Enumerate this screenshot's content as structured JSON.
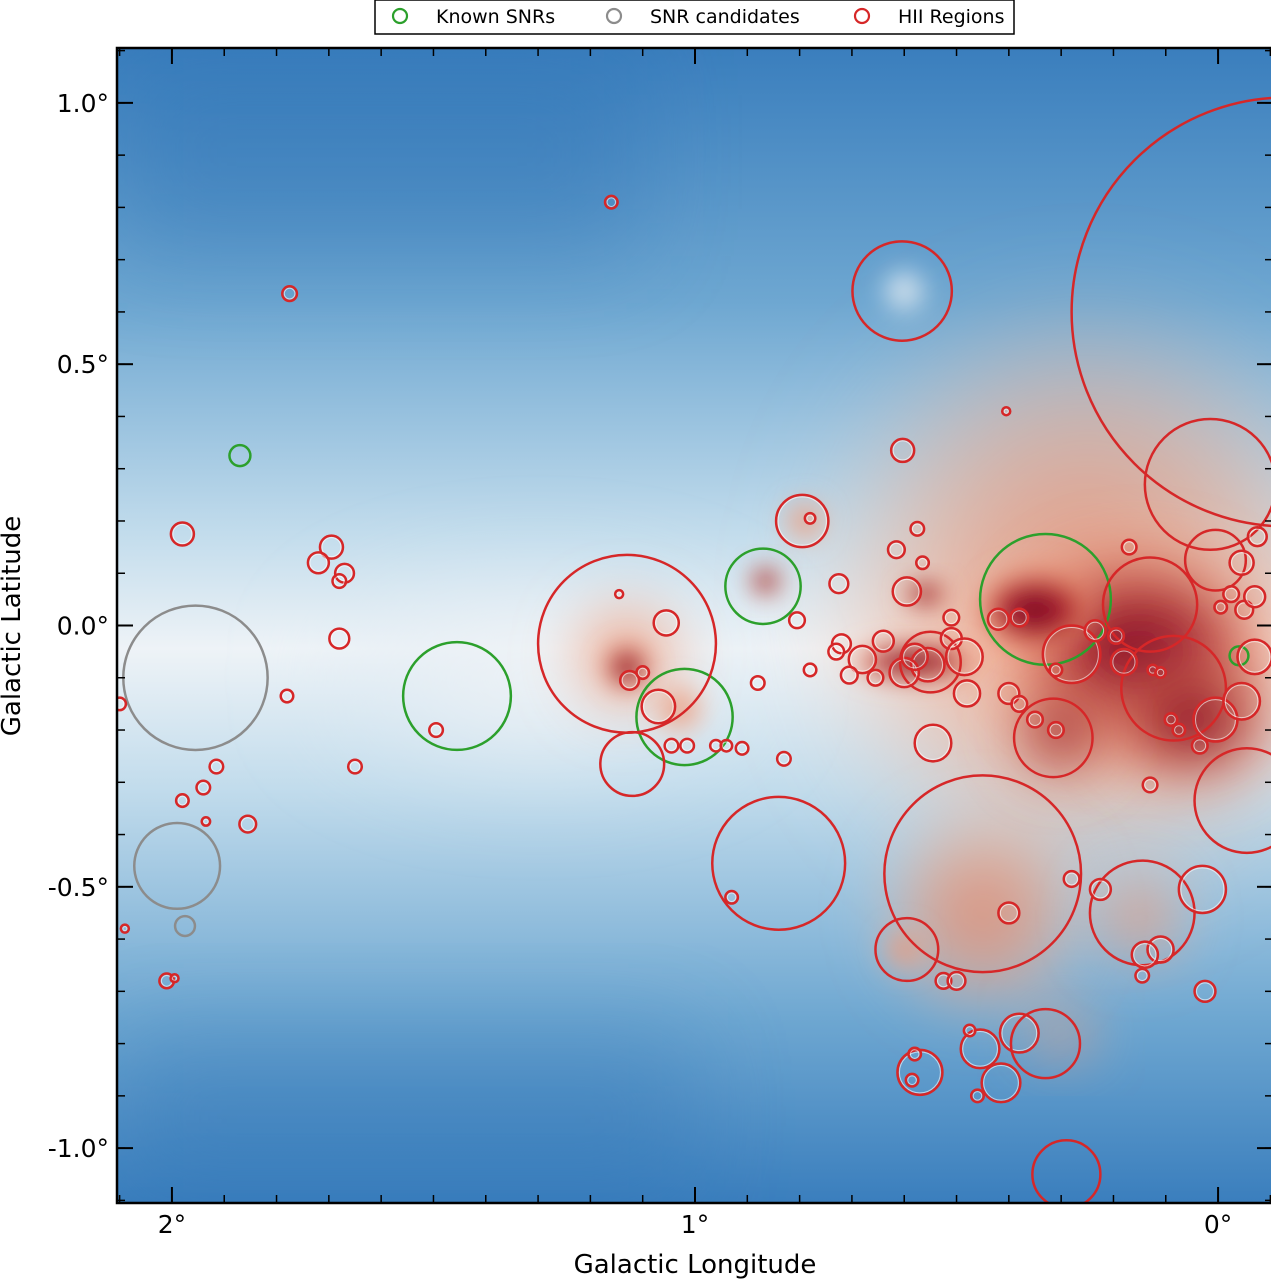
{
  "chart_data": {
    "type": "scatter",
    "xlabel": "Galactic Longitude",
    "ylabel": "Galactic Latitude",
    "xlim": [
      2.105,
      -0.105
    ],
    "ylim": [
      -1.105,
      1.105
    ],
    "x_ticks": [
      {
        "value": 2,
        "label": "2°"
      },
      {
        "value": 1,
        "label": "1°"
      },
      {
        "value": 0,
        "label": "0°"
      }
    ],
    "y_ticks": [
      {
        "value": 1.0,
        "label": "1.0°"
      },
      {
        "value": 0.5,
        "label": "0.5°"
      },
      {
        "value": 0.0,
        "label": "0.0°"
      },
      {
        "value": -0.5,
        "label": "-0.5°"
      },
      {
        "value": -1.0,
        "label": "-1.0°"
      }
    ],
    "legend": {
      "placement": "top-center",
      "entries": [
        {
          "name": "Known SNRs",
          "color": "#2ca02c"
        },
        {
          "name": "SNR candidates",
          "color": "#8c8c8c"
        },
        {
          "name": "HII Regions",
          "color": "#d62728"
        }
      ]
    },
    "background_colormap": {
      "low": "#2166ac",
      "mid": "#f7f7f7",
      "high": "#67001f"
    },
    "series": [
      {
        "name": "Known SNRs",
        "color": "#2ca02c",
        "points": [
          {
            "l": 1.87,
            "b": 0.325,
            "r": 0.02
          },
          {
            "l": 1.455,
            "b": -0.135,
            "r": 0.103
          },
          {
            "l": 1.02,
            "b": -0.175,
            "r": 0.092
          },
          {
            "l": 0.87,
            "b": 0.075,
            "r": 0.072
          },
          {
            "l": 0.33,
            "b": 0.05,
            "r": 0.125
          },
          {
            "l": -0.04,
            "b": -0.058,
            "r": 0.018
          }
        ]
      },
      {
        "name": "SNR candidates",
        "color": "#8c8c8c",
        "points": [
          {
            "l": 1.955,
            "b": -0.1,
            "r": 0.138
          },
          {
            "l": 1.99,
            "b": -0.46,
            "r": 0.082
          },
          {
            "l": 1.975,
            "b": -0.575,
            "r": 0.019
          }
        ]
      },
      {
        "name": "HII Regions",
        "color": "#d62728",
        "points": [
          {
            "l": -0.13,
            "b": 0.6,
            "r": 0.41
          },
          {
            "l": 0.015,
            "b": 0.27,
            "r": 0.125
          },
          {
            "l": 0.13,
            "b": 0.04,
            "r": 0.09
          },
          {
            "l": 0.085,
            "b": -0.12,
            "r": 0.1
          },
          {
            "l": 0.315,
            "b": -0.215,
            "r": 0.075
          },
          {
            "l": 0.28,
            "b": -0.055,
            "r": 0.055
          },
          {
            "l": 0.005,
            "b": 0.125,
            "r": 0.058
          },
          {
            "l": 0.005,
            "b": -0.18,
            "r": 0.042
          },
          {
            "l": -0.045,
            "b": -0.145,
            "r": 0.035
          },
          {
            "l": -0.07,
            "b": -0.06,
            "r": 0.033
          },
          {
            "l": 0.42,
            "b": 0.012,
            "r": 0.02
          },
          {
            "l": 0.55,
            "b": -0.07,
            "r": 0.058
          },
          {
            "l": 0.555,
            "b": -0.075,
            "r": 0.032
          },
          {
            "l": 0.6,
            "b": -0.09,
            "r": 0.028
          },
          {
            "l": 0.48,
            "b": -0.13,
            "r": 0.025
          },
          {
            "l": 0.51,
            "b": -0.025,
            "r": 0.02
          },
          {
            "l": 0.58,
            "b": -0.06,
            "r": 0.025
          },
          {
            "l": 0.68,
            "b": -0.065,
            "r": 0.026
          },
          {
            "l": 0.64,
            "b": -0.03,
            "r": 0.02
          },
          {
            "l": 0.655,
            "b": -0.1,
            "r": 0.015
          },
          {
            "l": 0.72,
            "b": -0.035,
            "r": 0.018
          },
          {
            "l": 0.73,
            "b": -0.05,
            "r": 0.015
          },
          {
            "l": 0.705,
            "b": -0.095,
            "r": 0.016
          },
          {
            "l": 0.595,
            "b": 0.065,
            "r": 0.027
          },
          {
            "l": 0.51,
            "b": 0.015,
            "r": 0.015
          },
          {
            "l": 0.725,
            "b": 0.08,
            "r": 0.018
          },
          {
            "l": 0.565,
            "b": 0.12,
            "r": 0.012
          },
          {
            "l": 0.615,
            "b": 0.145,
            "r": 0.016
          },
          {
            "l": 0.575,
            "b": 0.185,
            "r": 0.013
          },
          {
            "l": 0.795,
            "b": 0.2,
            "r": 0.05
          },
          {
            "l": 0.805,
            "b": 0.01,
            "r": 0.015
          },
          {
            "l": 0.604,
            "b": 0.64,
            "r": 0.095
          },
          {
            "l": 0.603,
            "b": 0.335,
            "r": 0.022
          },
          {
            "l": 0.405,
            "b": 0.41,
            "r": 0.005
          },
          {
            "l": 0.78,
            "b": 0.205,
            "r": 0.01
          },
          {
            "l": 1.13,
            "b": -0.035,
            "r": 0.17
          },
          {
            "l": 1.055,
            "b": 0.005,
            "r": 0.024
          },
          {
            "l": 1.145,
            "b": 0.06,
            "r": 0.006
          },
          {
            "l": 1.125,
            "b": -0.105,
            "r": 0.018
          },
          {
            "l": 1.1,
            "b": -0.09,
            "r": 0.012
          },
          {
            "l": 1.07,
            "b": -0.155,
            "r": 0.032
          },
          {
            "l": 1.045,
            "b": -0.23,
            "r": 0.013
          },
          {
            "l": 1.015,
            "b": -0.23,
            "r": 0.013
          },
          {
            "l": 0.96,
            "b": -0.23,
            "r": 0.011
          },
          {
            "l": 0.94,
            "b": -0.23,
            "r": 0.011
          },
          {
            "l": 1.12,
            "b": -0.265,
            "r": 0.061
          },
          {
            "l": 0.84,
            "b": -0.455,
            "r": 0.127
          },
          {
            "l": 0.93,
            "b": -0.52,
            "r": 0.012
          },
          {
            "l": 0.45,
            "b": -0.475,
            "r": 0.188
          },
          {
            "l": 0.595,
            "b": -0.62,
            "r": 0.06
          },
          {
            "l": 0.525,
            "b": -0.68,
            "r": 0.015
          },
          {
            "l": 0.5,
            "b": -0.68,
            "r": 0.017
          },
          {
            "l": 0.145,
            "b": -0.55,
            "r": 0.1
          },
          {
            "l": 0.11,
            "b": -0.62,
            "r": 0.025
          },
          {
            "l": 0.14,
            "b": -0.63,
            "r": 0.025
          },
          {
            "l": 0.145,
            "b": -0.67,
            "r": 0.013
          },
          {
            "l": 0.03,
            "b": -0.505,
            "r": 0.045
          },
          {
            "l": -0.055,
            "b": -0.335,
            "r": 0.1
          },
          {
            "l": 0.025,
            "b": -0.7,
            "r": 0.02
          },
          {
            "l": 0.225,
            "b": -0.505,
            "r": 0.02
          },
          {
            "l": 0.4,
            "b": -0.55,
            "r": 0.02
          },
          {
            "l": 0.28,
            "b": -0.485,
            "r": 0.015
          },
          {
            "l": 0.57,
            "b": -0.855,
            "r": 0.043
          },
          {
            "l": 0.58,
            "b": -0.82,
            "r": 0.012
          },
          {
            "l": 0.585,
            "b": -0.87,
            "r": 0.012
          },
          {
            "l": 0.455,
            "b": -0.81,
            "r": 0.037
          },
          {
            "l": 0.38,
            "b": -0.78,
            "r": 0.037
          },
          {
            "l": 0.415,
            "b": -0.875,
            "r": 0.037
          },
          {
            "l": 0.46,
            "b": -0.9,
            "r": 0.012
          },
          {
            "l": 0.475,
            "b": -0.775,
            "r": 0.011
          },
          {
            "l": 0.33,
            "b": -0.8,
            "r": 0.066
          },
          {
            "l": 0.29,
            "b": -1.05,
            "r": 0.065
          },
          {
            "l": 0.545,
            "b": -0.225,
            "r": 0.035
          },
          {
            "l": 0.485,
            "b": -0.06,
            "r": 0.035
          },
          {
            "l": 0.4,
            "b": -0.13,
            "r": 0.02
          },
          {
            "l": 0.31,
            "b": -0.2,
            "r": 0.015
          },
          {
            "l": 0.38,
            "b": -0.15,
            "r": 0.015
          },
          {
            "l": 0.35,
            "b": -0.18,
            "r": 0.015
          },
          {
            "l": 0.91,
            "b": -0.235,
            "r": 0.012
          },
          {
            "l": 0.83,
            "b": -0.255,
            "r": 0.013
          },
          {
            "l": 0.88,
            "b": -0.11,
            "r": 0.013
          },
          {
            "l": 0.78,
            "b": -0.085,
            "r": 0.012
          },
          {
            "l": 1.16,
            "b": 0.81,
            "r": 0.012
          },
          {
            "l": 1.775,
            "b": 0.635,
            "r": 0.014
          },
          {
            "l": 1.98,
            "b": 0.175,
            "r": 0.022
          },
          {
            "l": 1.695,
            "b": 0.15,
            "r": 0.022
          },
          {
            "l": 1.72,
            "b": 0.12,
            "r": 0.02
          },
          {
            "l": 1.67,
            "b": 0.1,
            "r": 0.018
          },
          {
            "l": 1.68,
            "b": 0.085,
            "r": 0.013
          },
          {
            "l": 1.68,
            "b": -0.025,
            "r": 0.019
          },
          {
            "l": 1.78,
            "b": -0.135,
            "r": 0.012
          },
          {
            "l": 2.1,
            "b": -0.15,
            "r": 0.012
          },
          {
            "l": 1.495,
            "b": -0.2,
            "r": 0.013
          },
          {
            "l": 1.65,
            "b": -0.27,
            "r": 0.013
          },
          {
            "l": 1.915,
            "b": -0.27,
            "r": 0.013
          },
          {
            "l": 1.94,
            "b": -0.31,
            "r": 0.013
          },
          {
            "l": 1.98,
            "b": -0.335,
            "r": 0.012
          },
          {
            "l": 1.935,
            "b": -0.375,
            "r": 0.008
          },
          {
            "l": 1.855,
            "b": -0.38,
            "r": 0.016
          },
          {
            "l": 2.09,
            "b": -0.58,
            "r": 0.007
          },
          {
            "l": 2.01,
            "b": -0.68,
            "r": 0.014
          },
          {
            "l": 1.995,
            "b": -0.675,
            "r": 0.007
          },
          {
            "l": -0.025,
            "b": 0.06,
            "r": 0.015
          },
          {
            "l": -0.05,
            "b": 0.03,
            "r": 0.017
          },
          {
            "l": -0.07,
            "b": 0.055,
            "r": 0.02
          },
          {
            "l": -0.005,
            "b": 0.035,
            "r": 0.012
          },
          {
            "l": -0.045,
            "b": 0.12,
            "r": 0.023
          },
          {
            "l": -0.075,
            "b": 0.17,
            "r": 0.018
          },
          {
            "l": 0.035,
            "b": -0.23,
            "r": 0.015
          },
          {
            "l": 0.075,
            "b": -0.2,
            "r": 0.012
          },
          {
            "l": 0.18,
            "b": -0.07,
            "r": 0.025
          },
          {
            "l": 0.125,
            "b": -0.085,
            "r": 0.01
          },
          {
            "l": 0.11,
            "b": -0.09,
            "r": 0.01
          },
          {
            "l": 0.235,
            "b": -0.01,
            "r": 0.02
          },
          {
            "l": 0.195,
            "b": -0.02,
            "r": 0.015
          },
          {
            "l": 0.17,
            "b": 0.15,
            "r": 0.014
          },
          {
            "l": 0.13,
            "b": -0.305,
            "r": 0.014
          },
          {
            "l": 0.09,
            "b": -0.18,
            "r": 0.012
          },
          {
            "l": 0.31,
            "b": -0.085,
            "r": 0.012
          },
          {
            "l": 0.38,
            "b": 0.015,
            "r": 0.017
          }
        ]
      }
    ]
  }
}
